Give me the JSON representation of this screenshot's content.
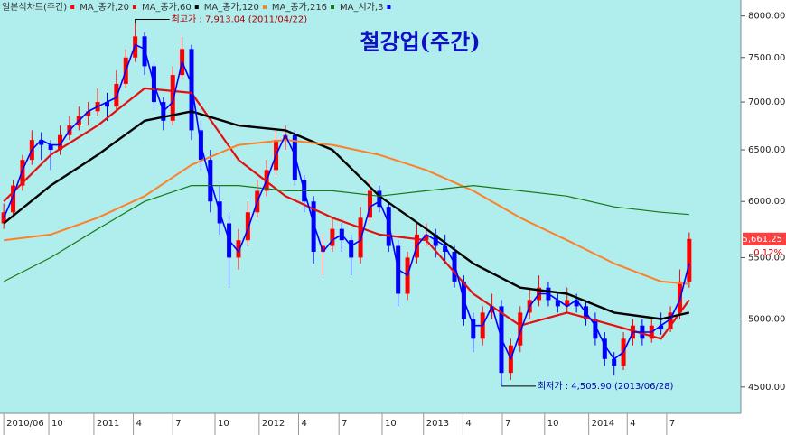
{
  "chart_data": {
    "type": "candlestick",
    "title": "철강업(주간)",
    "candles": {
      "name": "일본식차트(주간)",
      "up_color": "#ff0000",
      "down_color": "#0000ff",
      "open": [
        5800,
        5900,
        6150,
        6400,
        6600,
        6550,
        6500,
        6650,
        6750,
        6850,
        6900,
        7000,
        6950,
        7200,
        7500,
        7750,
        7400,
        7000,
        6800,
        7300,
        7600,
        6700,
        6400,
        6000,
        5800,
        5500,
        5650,
        5900,
        6100,
        6300,
        6600,
        6650,
        6200,
        6000,
        5550,
        5600,
        5750,
        5650,
        5500,
        5850,
        6100,
        5950,
        5600,
        5200,
        5500,
        5650,
        5700,
        5600,
        5550,
        5300,
        5000,
        4850,
        5050,
        5100,
        4600,
        4800,
        5050,
        5150,
        5250,
        5150,
        5100,
        5150,
        5100,
        5000,
        4850,
        4700,
        4650,
        4850,
        4950,
        4850,
        4950,
        4920,
        5050,
        5300
      ],
      "high": [
        5980,
        6200,
        6450,
        6700,
        6680,
        6600,
        6750,
        6850,
        6950,
        7000,
        7150,
        7100,
        7350,
        7600,
        7913.04,
        7800,
        7450,
        7050,
        7400,
        7750,
        7650,
        6800,
        6500,
        6150,
        5900,
        5750,
        6000,
        6200,
        6400,
        6700,
        6750,
        6700,
        6250,
        6050,
        5700,
        5850,
        5800,
        5700,
        5950,
        6200,
        6150,
        6000,
        5650,
        5550,
        5800,
        5800,
        5750,
        5700,
        5600,
        5350,
        5050,
        5100,
        5200,
        5150,
        4850,
        5100,
        5250,
        5350,
        5300,
        5200,
        5250,
        5200,
        5150,
        5050,
        4900,
        4750,
        4900,
        5000,
        5000,
        5000,
        5050,
        5100,
        5400,
        5720
      ],
      "low": [
        5750,
        5850,
        6100,
        6350,
        6400,
        6300,
        6450,
        6600,
        6700,
        6750,
        6850,
        6800,
        6900,
        7150,
        7450,
        7300,
        6900,
        6700,
        6750,
        7250,
        6600,
        6300,
        5900,
        5700,
        5250,
        5400,
        5600,
        5850,
        6050,
        6250,
        6500,
        6150,
        5900,
        5450,
        5350,
        5550,
        5550,
        5350,
        5450,
        5800,
        5900,
        5550,
        5100,
        5150,
        5450,
        5600,
        5500,
        5450,
        5250,
        4950,
        4750,
        4800,
        5000,
        4505.9,
        4550,
        4750,
        5000,
        5100,
        5100,
        5050,
        5050,
        5050,
        4950,
        4800,
        4650,
        4580,
        4620,
        4800,
        4800,
        4820,
        4880,
        4900,
        5000,
        5250
      ],
      "close": [
        5900,
        6150,
        6400,
        6600,
        6550,
        6500,
        6650,
        6750,
        6850,
        6900,
        7000,
        6950,
        7200,
        7500,
        7750,
        7400,
        7000,
        6800,
        7300,
        7600,
        6700,
        6400,
        6000,
        5800,
        5500,
        5650,
        5900,
        6100,
        6300,
        6600,
        6650,
        6200,
        6000,
        5550,
        5600,
        5750,
        5650,
        5500,
        5850,
        6100,
        5950,
        5600,
        5200,
        5500,
        5700,
        5700,
        5600,
        5550,
        5300,
        5000,
        4850,
        5050,
        5100,
        4600,
        4800,
        5050,
        5150,
        5250,
        5150,
        5100,
        5150,
        5100,
        5000,
        4850,
        4700,
        4650,
        4850,
        4950,
        4850,
        4950,
        4920,
        5050,
        5300,
        5661.25
      ]
    },
    "series": [
      {
        "name": "MA_종가,20",
        "color": "#e41010",
        "width": 2.2,
        "x": [
          0,
          5,
          10,
          15,
          20,
          25,
          30,
          35,
          40,
          45,
          50,
          55,
          60,
          65,
          70,
          73
        ],
        "values": [
          6000,
          6450,
          6750,
          7150,
          7100,
          6400,
          6050,
          5850,
          5700,
          5650,
          5200,
          4950,
          5050,
          4950,
          4850,
          5150
        ]
      },
      {
        "name": "MA_종가,60",
        "color": "#000000",
        "width": 2.4,
        "x": [
          0,
          5,
          10,
          15,
          20,
          25,
          30,
          35,
          40,
          45,
          50,
          55,
          60,
          65,
          70,
          73
        ],
        "values": [
          5800,
          6150,
          6450,
          6800,
          6900,
          6750,
          6700,
          6500,
          6050,
          5750,
          5450,
          5250,
          5200,
          5050,
          5000,
          5050
        ]
      },
      {
        "name": "MA_종가,120",
        "color": "#ff7f27",
        "width": 2,
        "x": [
          0,
          5,
          10,
          15,
          20,
          25,
          30,
          35,
          40,
          45,
          50,
          55,
          60,
          65,
          70,
          73
        ],
        "values": [
          5650,
          5700,
          5850,
          6050,
          6350,
          6550,
          6600,
          6550,
          6450,
          6300,
          6100,
          5850,
          5650,
          5450,
          5300,
          5280
        ]
      },
      {
        "name": "MA_종가,216",
        "color": "#167a16",
        "width": 1.2,
        "x": [
          0,
          5,
          10,
          15,
          20,
          25,
          30,
          35,
          40,
          45,
          50,
          55,
          60,
          65,
          70,
          73
        ],
        "values": [
          5300,
          5500,
          5750,
          6000,
          6150,
          6150,
          6100,
          6100,
          6050,
          6100,
          6150,
          6100,
          6050,
          5950,
          5900,
          5880
        ]
      },
      {
        "name": "MA_시가,3",
        "color": "#0000ff",
        "width": 1.6,
        "values": [
          5850,
          6050,
          6300,
          6500,
          6600,
          6550,
          6550,
          6700,
          6800,
          6900,
          6950,
          7000,
          7050,
          7350,
          7650,
          7600,
          7200,
          6900,
          7000,
          7450,
          7200,
          6550,
          6200,
          5900,
          5650,
          5550,
          5750,
          6000,
          6200,
          6450,
          6650,
          6450,
          6100,
          5800,
          5550,
          5650,
          5700,
          5600,
          5650,
          5950,
          6000,
          5800,
          5400,
          5350,
          5600,
          5700,
          5650,
          5600,
          5450,
          5150,
          4950,
          4950,
          5100,
          4850,
          4700,
          4900,
          5100,
          5200,
          5200,
          5150,
          5100,
          5150,
          5050,
          4950,
          4800,
          4700,
          4750,
          4900,
          4900,
          4900,
          4950,
          5000,
          5150,
          5450
        ]
      }
    ],
    "yscale": "log",
    "ylim": [
      4320,
      8200
    ],
    "yticks": [
      {
        "value": 4500,
        "label": "4500.00"
      },
      {
        "value": 5000,
        "label": "5000.00"
      },
      {
        "value": 5500,
        "label": "5500.00"
      },
      {
        "value": 6000,
        "label": "6000.00"
      },
      {
        "value": 6500,
        "label": "6500.00"
      },
      {
        "value": 7000,
        "label": "7000.00"
      },
      {
        "value": 7500,
        "label": "7500.00"
      },
      {
        "value": 8000,
        "label": "8000.00"
      }
    ],
    "xlim": [
      -0.4,
      78.5
    ],
    "xticks": [
      {
        "value": 0,
        "label": "2010/06"
      },
      {
        "value": 4.8,
        "label": "10"
      },
      {
        "value": 9.6,
        "label": "2011"
      },
      {
        "value": 13.8,
        "label": "4"
      },
      {
        "value": 18,
        "label": "7"
      },
      {
        "value": 22.5,
        "label": "10"
      },
      {
        "value": 27.2,
        "label": "2012"
      },
      {
        "value": 31.4,
        "label": "4"
      },
      {
        "value": 35.7,
        "label": "7"
      },
      {
        "value": 40.3,
        "label": "10"
      },
      {
        "value": 44.7,
        "label": "2013"
      },
      {
        "value": 48.9,
        "label": "4"
      },
      {
        "value": 53.1,
        "label": "7"
      },
      {
        "value": 57.6,
        "label": "10"
      },
      {
        "value": 62.3,
        "label": "2014"
      },
      {
        "value": 66.4,
        "label": "4"
      },
      {
        "value": 70.6,
        "label": "7"
      }
    ],
    "annotations": [
      {
        "text": "최고가 : 7,913.04 (2011/04/22)",
        "x": 14,
        "y": 7913.04
      },
      {
        "text": "최저가 : 4,505.90 (2013/06/28)",
        "x": 53,
        "y": 4505.9
      }
    ],
    "last_price": {
      "value": 5661.25,
      "label": "5,661.25",
      "change": "0.12%"
    }
  }
}
